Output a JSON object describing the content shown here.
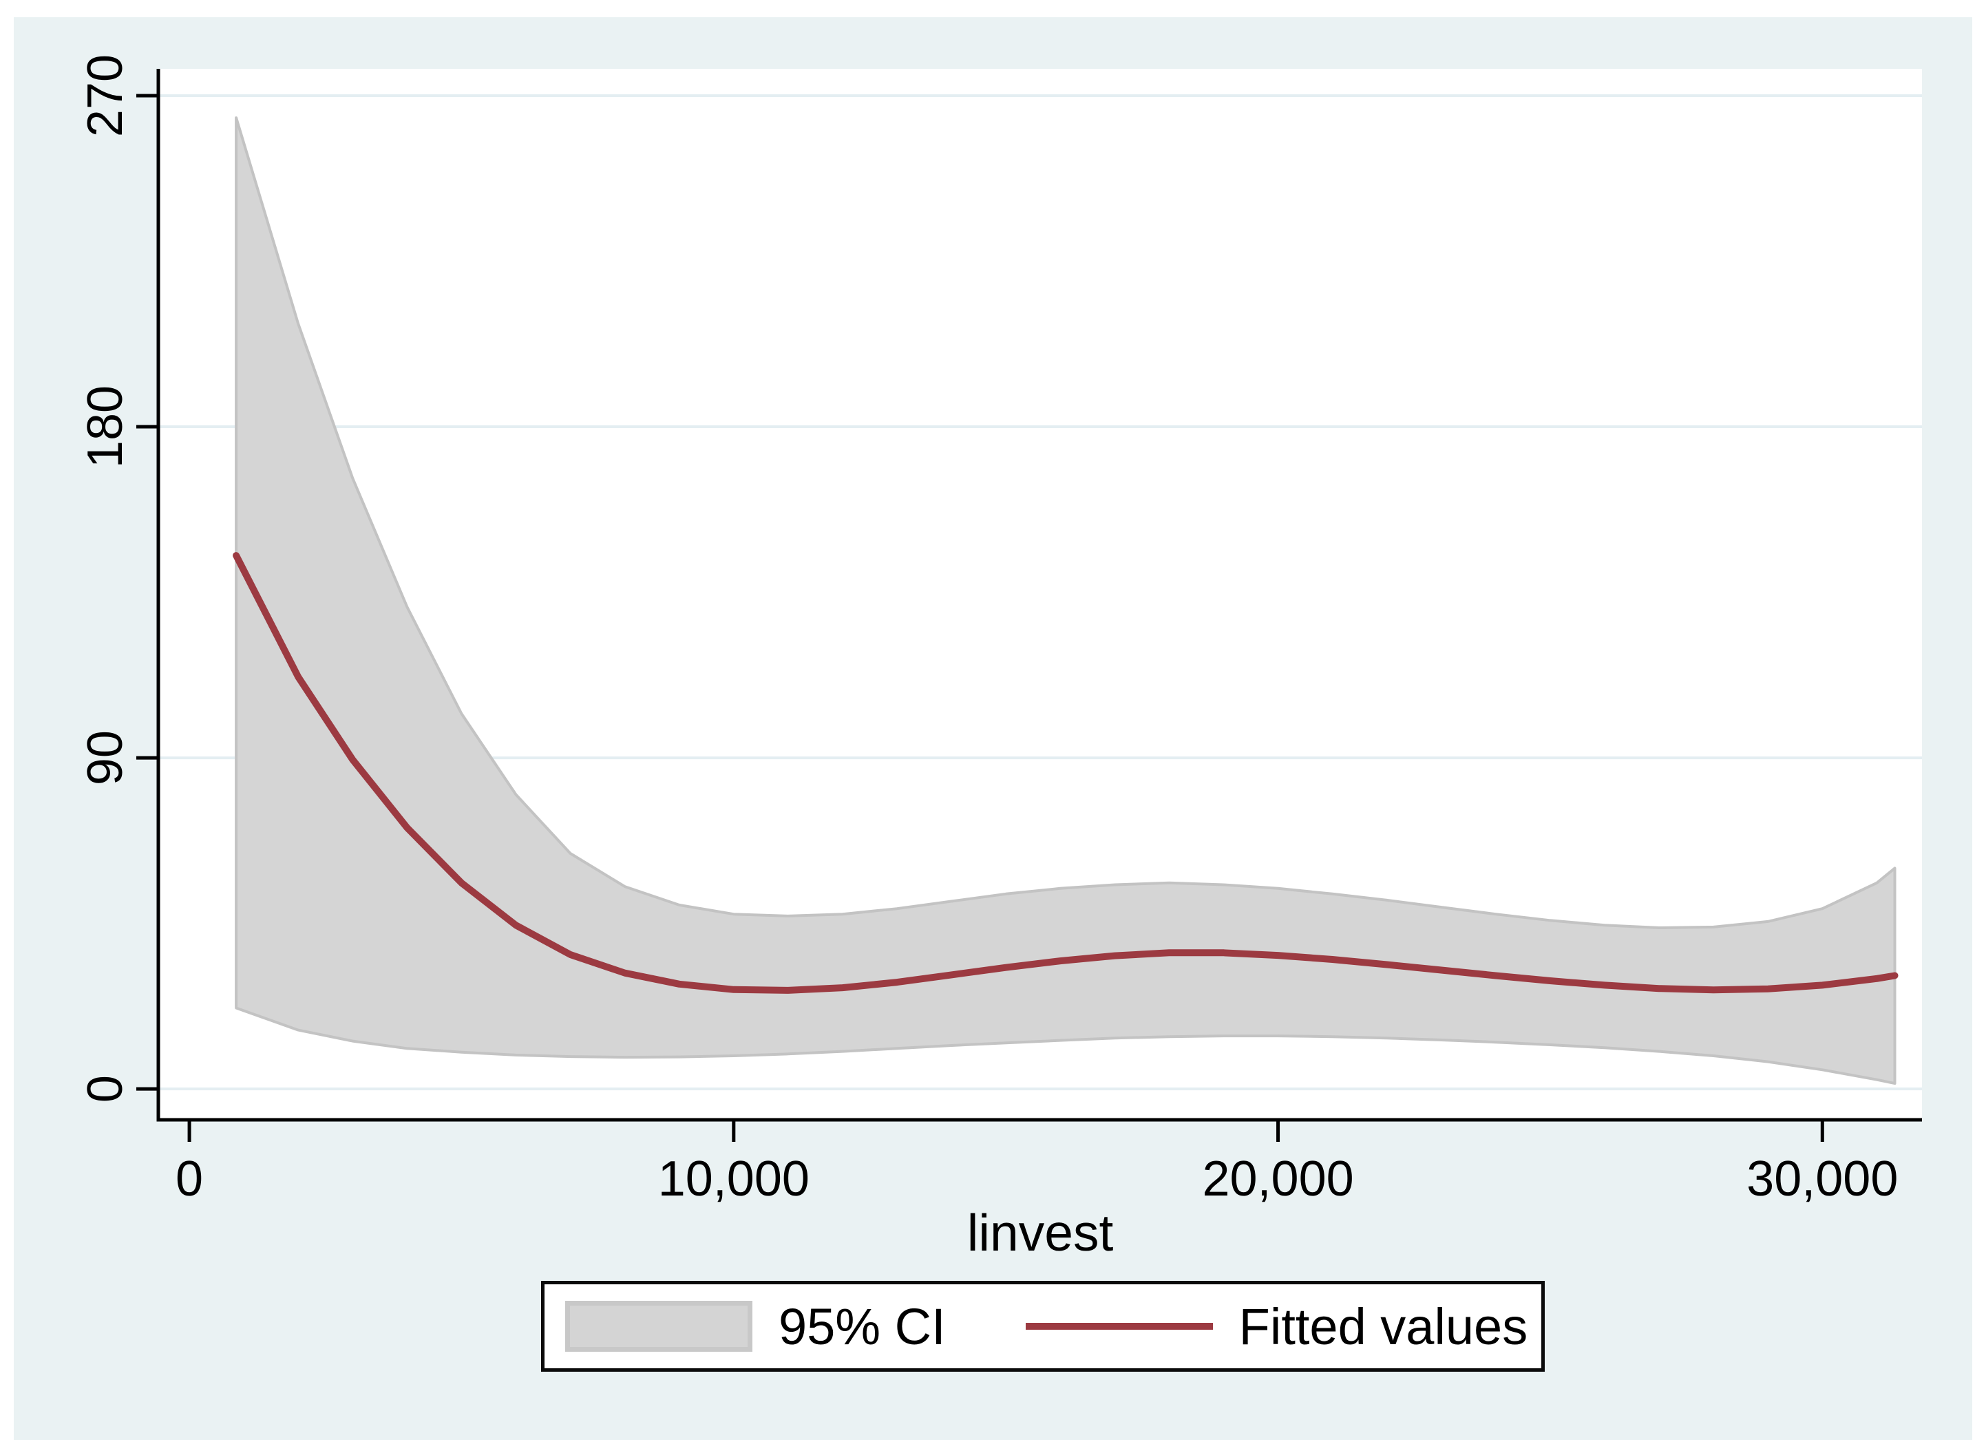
{
  "page": {
    "background_color": "#ffffff",
    "canvas_color": "#eaf2f3",
    "plot_background_color": "#ffffff",
    "gridline_color": "#e4eef2",
    "axis_color": "#000000",
    "text_color": "#000000"
  },
  "chart_data": {
    "type": "area",
    "subtype": "confidence-band-with-fitted-line",
    "title": "",
    "xlabel": "linvest",
    "ylabel": "",
    "xlim": [
      -570,
      31830
    ],
    "ylim": [
      -8.4,
      277.3
    ],
    "grid": "horizontal-only",
    "x_ticks": [
      {
        "value": 0,
        "label": "0"
      },
      {
        "value": 10000,
        "label": "10,000"
      },
      {
        "value": 20000,
        "label": "20,000"
      },
      {
        "value": 30000,
        "label": "30,000"
      }
    ],
    "y_ticks": [
      {
        "value": 0,
        "label": "0"
      },
      {
        "value": 90,
        "label": "90"
      },
      {
        "value": 180,
        "label": "180"
      },
      {
        "value": 270,
        "label": "270"
      }
    ],
    "legend": {
      "position": "bottom-center",
      "entries": [
        {
          "label": "95% CI",
          "type": "area",
          "color": "#d4d4d4"
        },
        {
          "label": "Fitted values",
          "type": "line",
          "color": "#9c3a41"
        }
      ]
    },
    "x": [
      860,
      2000,
      3000,
      4000,
      5000,
      6000,
      7000,
      8000,
      9000,
      10000,
      11000,
      12000,
      13000,
      14000,
      15000,
      16000,
      17000,
      18000,
      19000,
      20000,
      21000,
      22000,
      23000,
      24000,
      25000,
      26000,
      27000,
      28000,
      29000,
      30000,
      31000,
      31330
    ],
    "series": [
      {
        "name": "Fitted values",
        "kind": "line",
        "color": "#9c3a41",
        "values": [
          145,
          112,
          89.5,
          71,
          56,
          44.5,
          36.5,
          31.5,
          28.5,
          27,
          26.8,
          27.5,
          29,
          31,
          33,
          34.8,
          36.2,
          37,
          37,
          36.3,
          35.2,
          33.8,
          32.3,
          30.8,
          29.4,
          28.2,
          27.3,
          26.9,
          27.2,
          28.2,
          30,
          30.8
        ]
      },
      {
        "name": "95% CI",
        "kind": "band",
        "fill": "#d5d5d5",
        "stroke": "#c3c3c3",
        "upper": [
          264,
          208,
          166,
          131,
          102,
          80,
          64,
          55,
          50,
          47.5,
          47,
          47.5,
          49,
          51,
          53,
          54.5,
          55.5,
          56,
          55.5,
          54.5,
          53,
          51.3,
          49.4,
          47.5,
          45.8,
          44.5,
          43.8,
          44,
          45.5,
          49,
          56,
          60
        ],
        "lower": [
          22,
          16,
          13,
          11,
          10,
          9.2,
          8.8,
          8.6,
          8.7,
          9,
          9.5,
          10.2,
          11,
          11.8,
          12.5,
          13.2,
          13.8,
          14.2,
          14.4,
          14.4,
          14.2,
          13.8,
          13.3,
          12.7,
          12,
          11.2,
          10.2,
          9,
          7.4,
          5.2,
          2.5,
          1.5
        ]
      }
    ]
  }
}
